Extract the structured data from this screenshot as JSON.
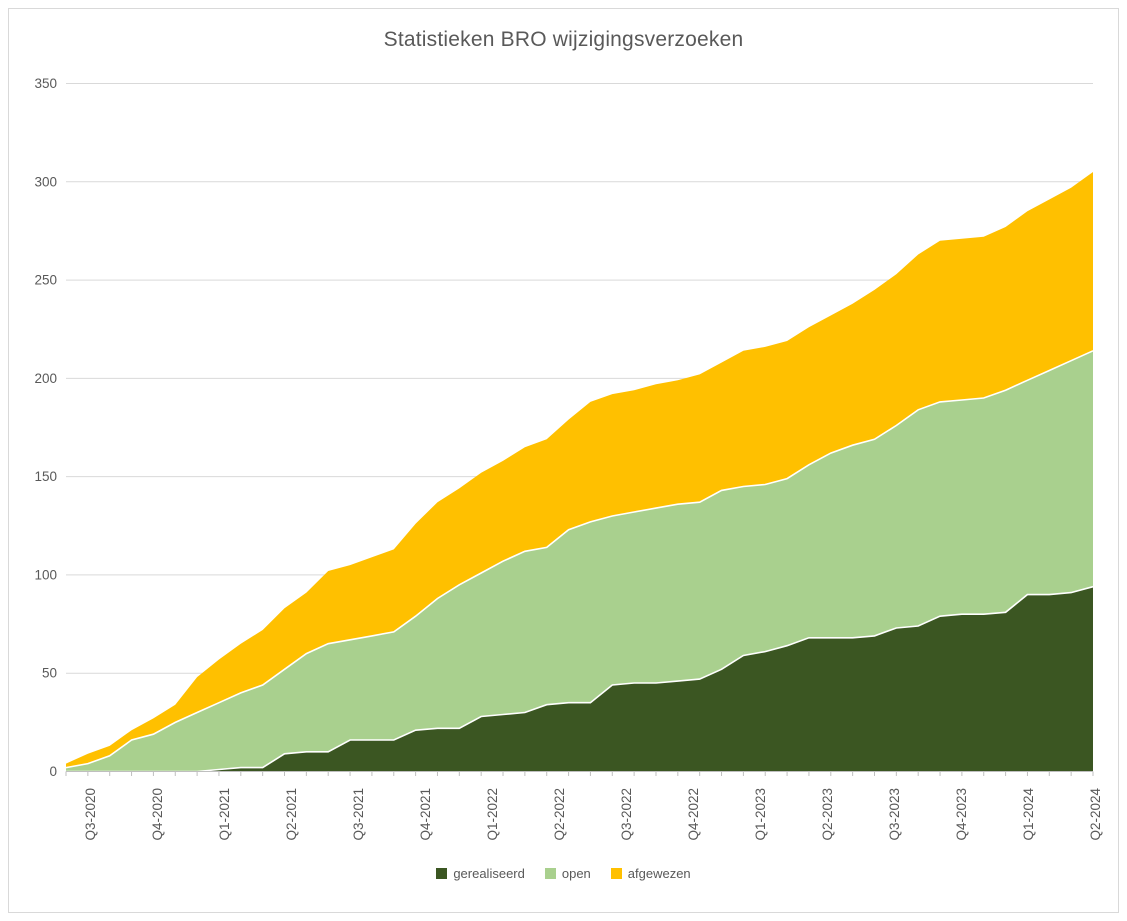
{
  "chart_data": {
    "type": "area",
    "stacked": true,
    "title": "Statistieken BRO wijzigingsverzoeken",
    "x_tick_labels": [
      "Q3-2020",
      "Q4-2020",
      "Q1-2021",
      "Q2-2021",
      "Q3-2021",
      "Q4-2021",
      "Q1-2022",
      "Q2-2022",
      "Q3-2022",
      "Q4-2022",
      "Q1-2023",
      "Q2-2023",
      "Q3-2023",
      "Q4-2023",
      "Q1-2024",
      "Q2-2024"
    ],
    "points_per_quarter": 3,
    "n_points": 48,
    "ylim": [
      0,
      350
    ],
    "y_tick_step": 50,
    "y_tick_labels": [
      "0",
      "50",
      "100",
      "150",
      "200",
      "250",
      "300",
      "350"
    ],
    "grid": true,
    "legend_position": "bottom",
    "series": [
      {
        "name": "gerealiseerd",
        "color": "#3B5622",
        "values": [
          0,
          0,
          0,
          0,
          0,
          0,
          0,
          1,
          2,
          2,
          9,
          10,
          10,
          16,
          16,
          16,
          21,
          22,
          22,
          28,
          29,
          30,
          34,
          35,
          35,
          44,
          45,
          45,
          46,
          47,
          52,
          59,
          61,
          64,
          68,
          68,
          68,
          69,
          73,
          74,
          79,
          80,
          80,
          81,
          90,
          90,
          91,
          94
        ]
      },
      {
        "name": "open",
        "color": "#A9D08E",
        "values": [
          2,
          4,
          8,
          16,
          19,
          25,
          30,
          34,
          38,
          42,
          43,
          50,
          55,
          51,
          53,
          55,
          58,
          66,
          73,
          73,
          78,
          82,
          80,
          88,
          92,
          86,
          87,
          89,
          90,
          90,
          91,
          86,
          85,
          85,
          88,
          94,
          98,
          100,
          103,
          110,
          109,
          109,
          110,
          113,
          109,
          114,
          118,
          120
        ]
      },
      {
        "name": "afgewezen",
        "color": "#FFC000",
        "values": [
          2,
          5,
          5,
          5,
          8,
          9,
          18,
          22,
          25,
          28,
          31,
          31,
          37,
          38,
          40,
          42,
          47,
          49,
          49,
          51,
          51,
          53,
          55,
          56,
          61,
          62,
          62,
          63,
          63,
          65,
          65,
          69,
          70,
          70,
          70,
          70,
          72,
          76,
          77,
          79,
          82,
          82,
          82,
          83,
          86,
          87,
          88,
          91
        ]
      }
    ]
  },
  "colors": {
    "background": "#FFFFFF",
    "frame_border": "#D9D9D9",
    "gridline": "#D9D9D9",
    "axis": "#BFBFBF",
    "text": "#595959"
  }
}
